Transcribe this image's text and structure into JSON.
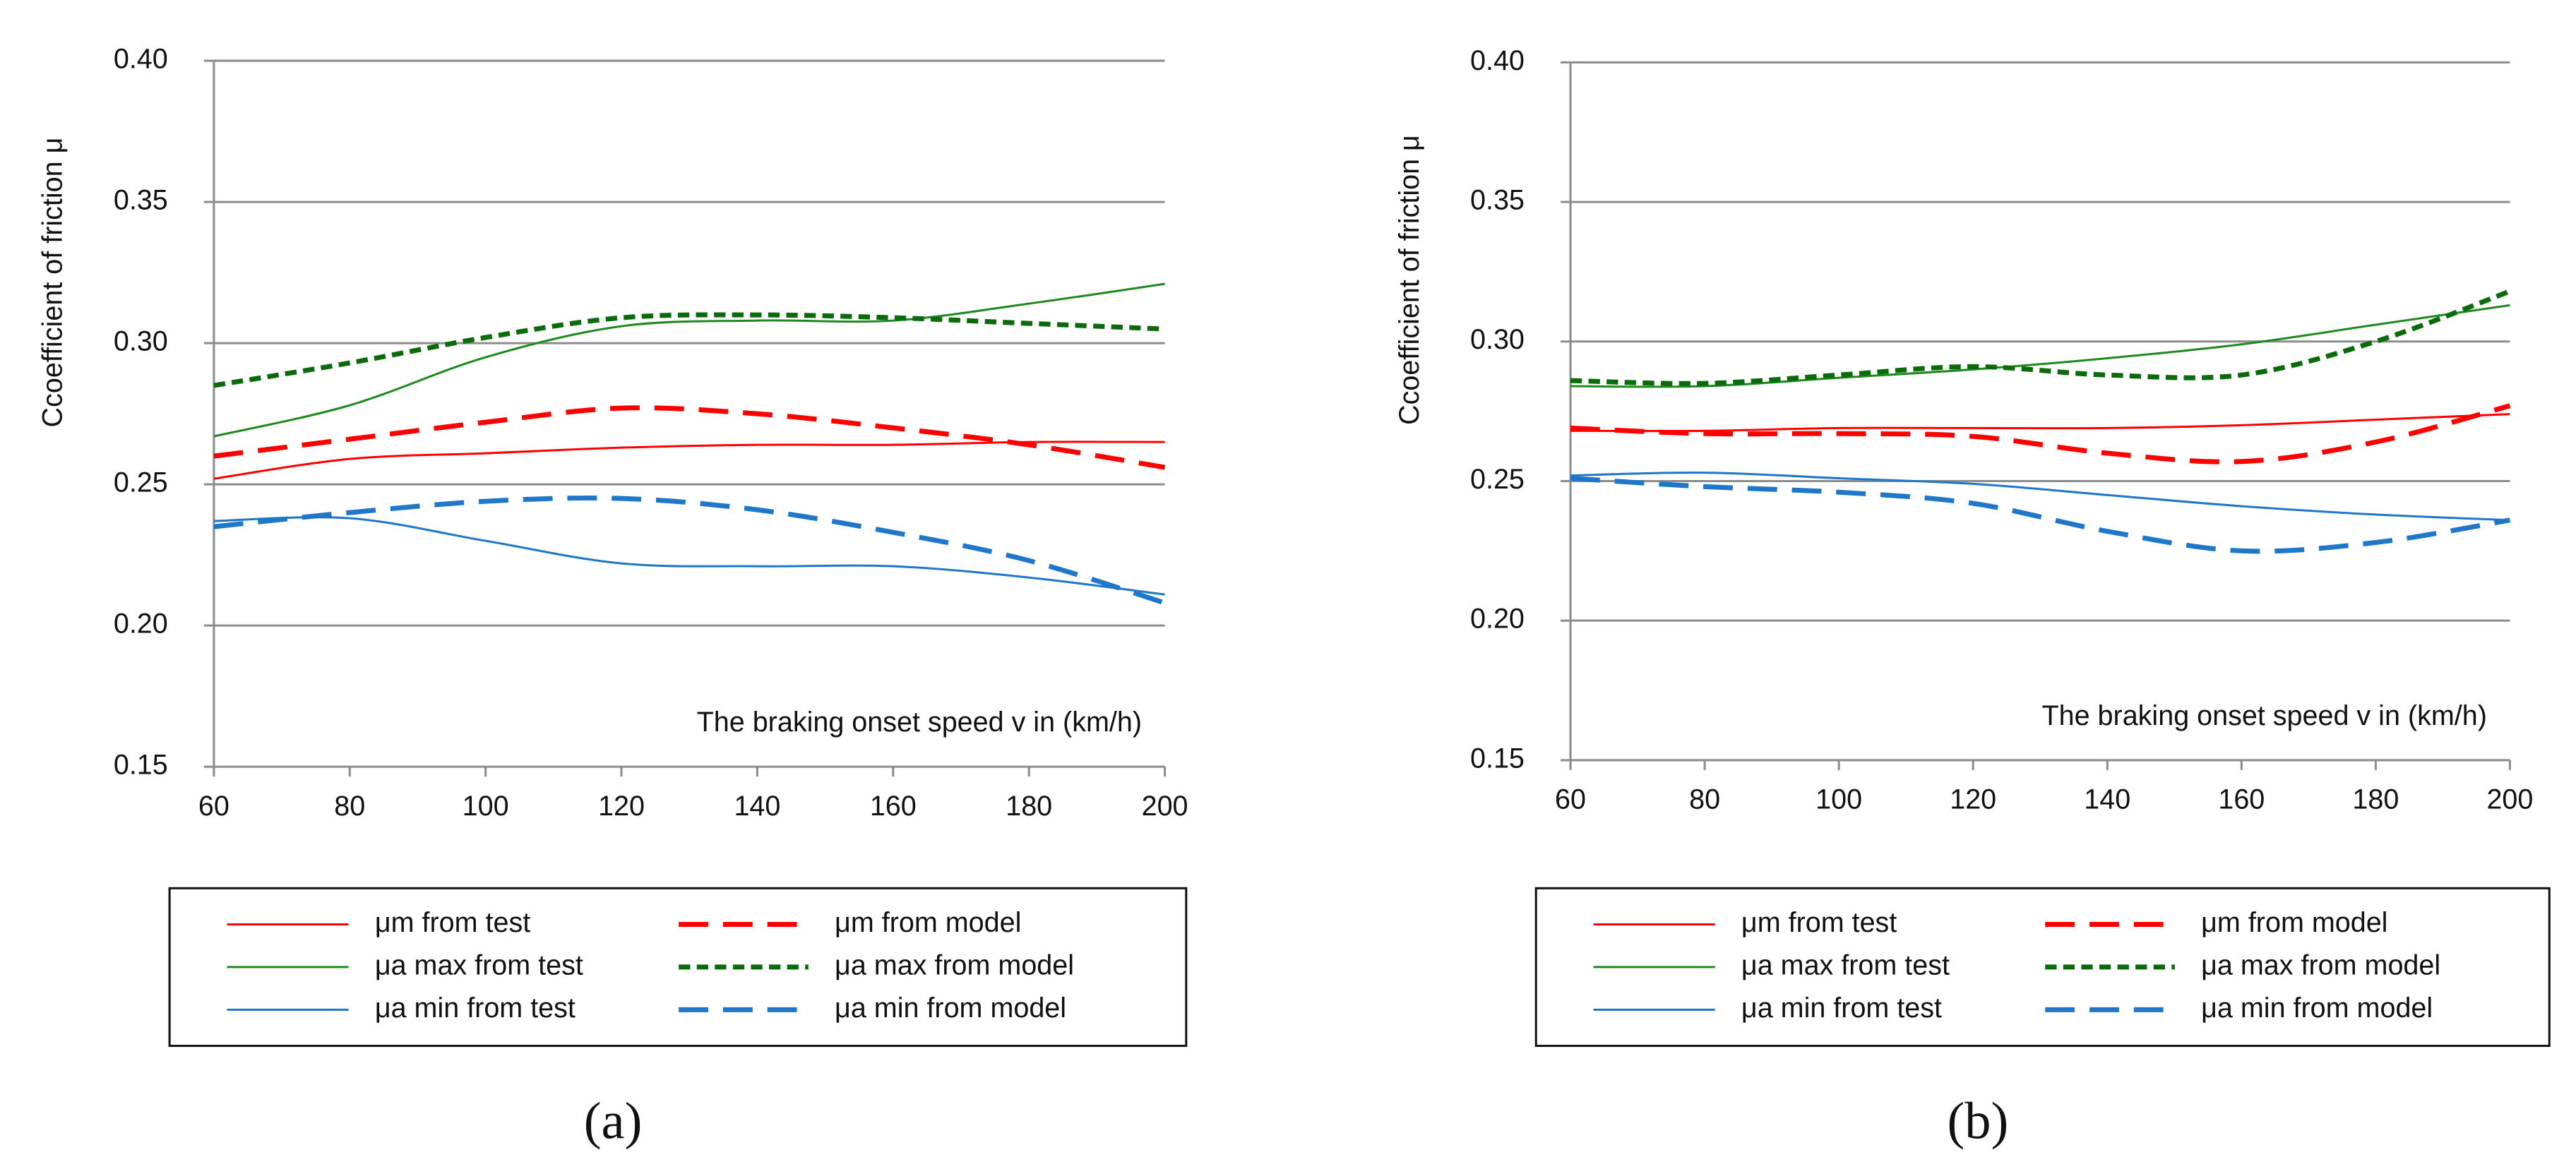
{
  "chart_data": [
    {
      "type": "line",
      "panel": "(a)",
      "ylabel": "Ccoefficient of friction  μ",
      "xlabel": "The braking onset speed v in (km/h)",
      "x": [
        60,
        80,
        100,
        120,
        140,
        160,
        180,
        200
      ],
      "xlim": [
        60,
        200
      ],
      "xticks": [
        60,
        80,
        100,
        120,
        140,
        160,
        180,
        200
      ],
      "ylim": [
        0.15,
        0.4
      ],
      "yticks": [
        0.15,
        {
          "value": 0.2,
          "label": "0.20"
        },
        0.25,
        {
          "value": 0.3,
          "label": "0.30"
        },
        0.35,
        {
          "value": 0.4,
          "label": "0.40"
        }
      ],
      "grid": true,
      "series": [
        {
          "name": "μm from test",
          "color": "#ff0000",
          "line_style": "solid",
          "values": [
            0.252,
            0.259,
            0.261,
            0.263,
            0.264,
            0.264,
            0.265,
            0.265
          ]
        },
        {
          "name": "μa max from test",
          "color": "#1e8a1e",
          "line_style": "solid",
          "values": [
            0.267,
            0.278,
            0.295,
            0.306,
            0.308,
            0.308,
            0.314,
            0.321
          ]
        },
        {
          "name": "μa min from test",
          "color": "#1f77c9",
          "line_style": "solid",
          "values": [
            0.237,
            0.238,
            0.23,
            0.222,
            0.221,
            0.221,
            0.217,
            0.211
          ]
        },
        {
          "name": "μm from model",
          "color": "#ff0000",
          "line_style": "dashed",
          "values": [
            0.26,
            0.266,
            0.272,
            0.277,
            0.275,
            0.27,
            0.264,
            0.256
          ]
        },
        {
          "name": "μa max from model",
          "color": "#0b6b0b",
          "line_style": "dotted",
          "values": [
            0.285,
            0.293,
            0.302,
            0.309,
            0.31,
            0.309,
            0.307,
            0.305
          ]
        },
        {
          "name": "μa min from model",
          "color": "#1f77c9",
          "line_style": "dashed",
          "values": [
            0.235,
            0.24,
            0.244,
            0.245,
            0.241,
            0.233,
            0.223,
            0.208
          ]
        }
      ]
    },
    {
      "type": "line",
      "panel": "(b)",
      "ylabel": "Ccoefficient of friction  μ",
      "xlabel": "The braking onset speed v in (km/h)",
      "x": [
        60,
        80,
        100,
        120,
        140,
        160,
        180,
        200
      ],
      "xlim": [
        60,
        200
      ],
      "xticks": [
        60,
        80,
        100,
        120,
        140,
        160,
        180,
        200
      ],
      "ylim": [
        0.15,
        0.4
      ],
      "yticks": [
        0.15,
        {
          "value": 0.2,
          "label": "0.20"
        },
        0.25,
        {
          "value": 0.3,
          "label": "0.30"
        },
        0.35,
        {
          "value": 0.4,
          "label": "0.40"
        }
      ],
      "grid": true,
      "series": [
        {
          "name": "μm from test",
          "color": "#ff0000",
          "line_style": "solid",
          "values": [
            0.268,
            0.268,
            0.269,
            0.269,
            0.269,
            0.27,
            0.272,
            0.274
          ]
        },
        {
          "name": "μa max from test",
          "color": "#1e8a1e",
          "line_style": "solid",
          "values": [
            0.284,
            0.284,
            0.287,
            0.29,
            0.294,
            0.299,
            0.306,
            0.313
          ]
        },
        {
          "name": "μa min from test",
          "color": "#1f77c9",
          "line_style": "solid",
          "values": [
            0.252,
            0.253,
            0.251,
            0.249,
            0.245,
            0.241,
            0.238,
            0.236
          ]
        },
        {
          "name": "μm from model",
          "color": "#ff0000",
          "line_style": "dashed",
          "values": [
            0.269,
            0.267,
            0.267,
            0.266,
            0.26,
            0.257,
            0.264,
            0.277
          ]
        },
        {
          "name": "μa max from model",
          "color": "#0b6b0b",
          "line_style": "dotted",
          "values": [
            0.286,
            0.285,
            0.288,
            0.291,
            0.288,
            0.288,
            0.3,
            0.318
          ]
        },
        {
          "name": "μa min from model",
          "color": "#1f77c9",
          "line_style": "dashed",
          "values": [
            0.251,
            0.248,
            0.246,
            0.242,
            0.232,
            0.225,
            0.228,
            0.236
          ]
        }
      ]
    }
  ]
}
